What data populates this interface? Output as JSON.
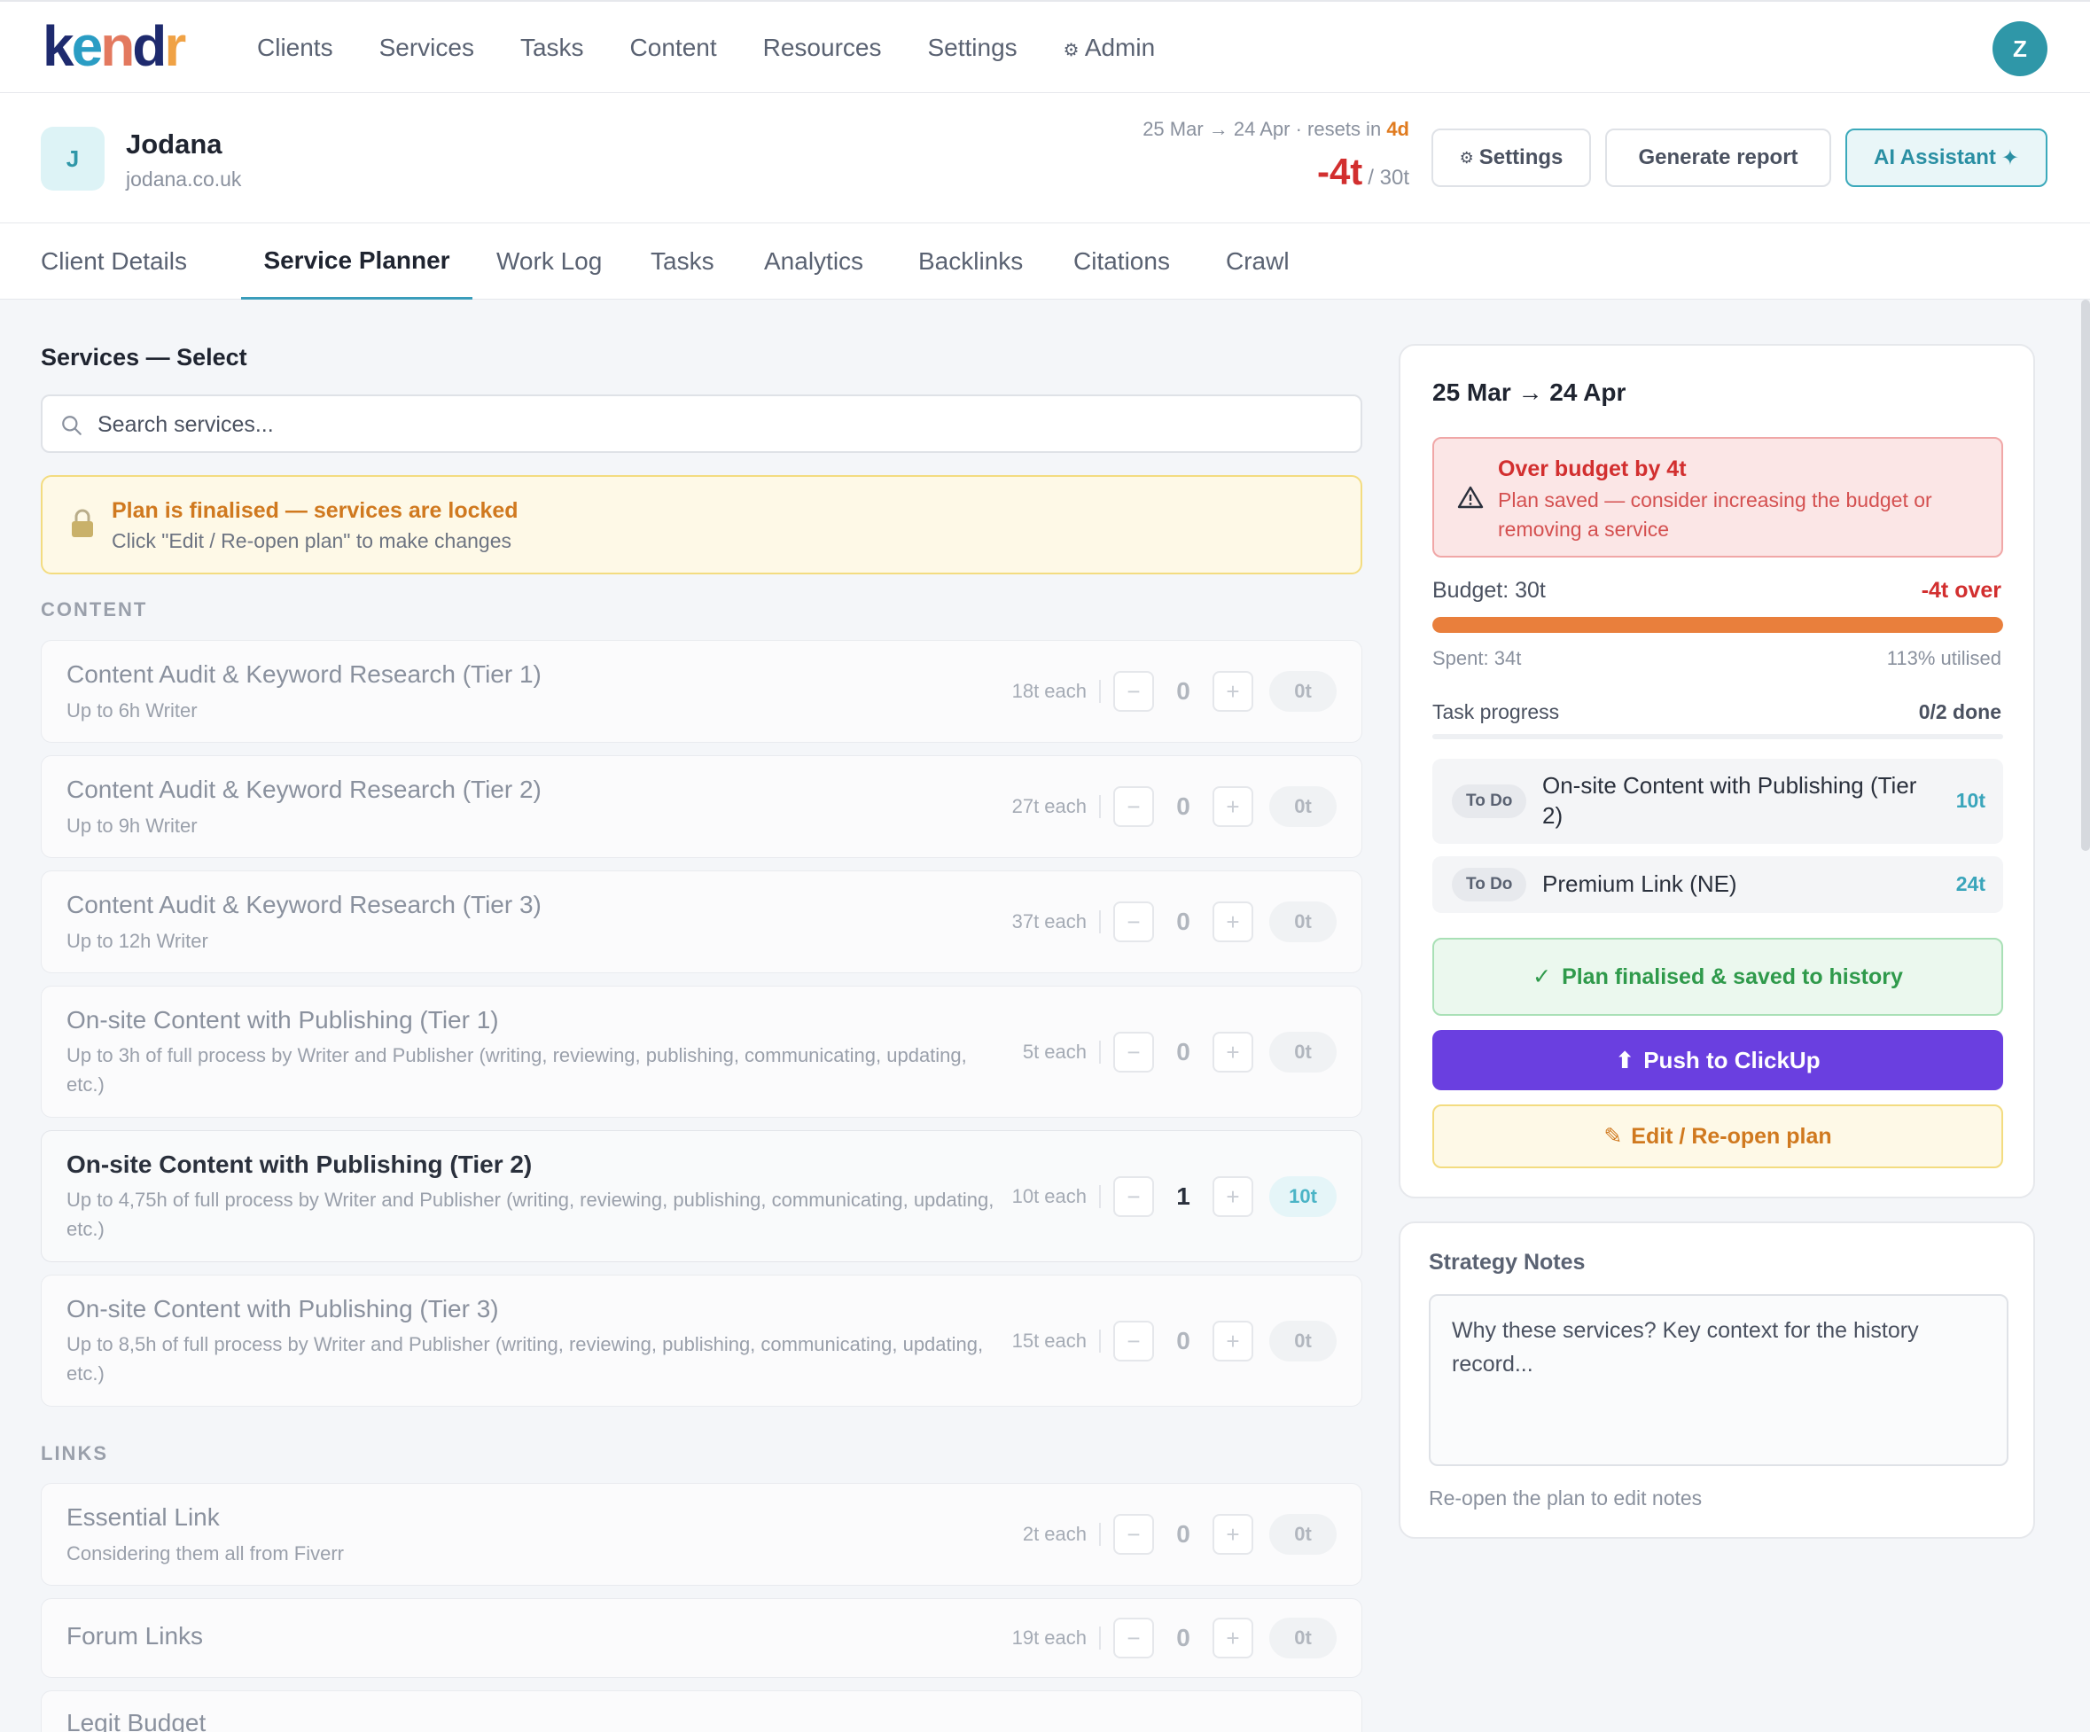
{
  "nav": {
    "logo": "kendr",
    "items": [
      "Clients",
      "Services",
      "Tasks",
      "Content",
      "Resources",
      "Settings"
    ],
    "admin_label": "Admin",
    "user_initial": "Z"
  },
  "client": {
    "initial": "J",
    "name": "Jodana",
    "domain": "jodana.co.uk",
    "period_text": "25 Mar → 24 Apr · resets in",
    "resets_in": "4d",
    "balance": "-4t",
    "budget_suffix": "/ 30t",
    "buttons": {
      "settings": "Settings",
      "report": "Generate report",
      "ai": "AI Assistant"
    }
  },
  "tabs": [
    "Client Details",
    "Service Planner",
    "Work Log",
    "Tasks",
    "Analytics",
    "Backlinks",
    "Citations",
    "Crawl"
  ],
  "services": {
    "title": "Services — Select",
    "search_placeholder": "Search services...",
    "locked_title": "Plan is finalised — services are locked",
    "locked_sub": "Click \"Edit / Re-open plan\" to make changes",
    "groups": [
      {
        "label": "CONTENT",
        "items": [
          {
            "name": "Content Audit & Keyword Research (Tier 1)",
            "desc": "Up to 6h Writer",
            "each": "18t each",
            "qty": "0",
            "total": "0t"
          },
          {
            "name": "Content Audit & Keyword Research (Tier 2)",
            "desc": "Up to 9h Writer",
            "each": "27t each",
            "qty": "0",
            "total": "0t"
          },
          {
            "name": "Content Audit & Keyword Research (Tier 3)",
            "desc": "Up to 12h Writer",
            "each": "37t each",
            "qty": "0",
            "total": "0t"
          },
          {
            "name": "On-site Content with Publishing (Tier 1)",
            "desc": "Up to 3h of full process by Writer and Publisher (writing, reviewing, publishing, communicating, updating, etc.)",
            "each": "5t each",
            "qty": "0",
            "total": "0t"
          },
          {
            "name": "On-site Content with Publishing (Tier 2)",
            "desc": "Up to 4,75h of full process by Writer and Publisher (writing, reviewing, publishing, communicating, updating, etc.)",
            "each": "10t each",
            "qty": "1",
            "total": "10t"
          },
          {
            "name": "On-site Content with Publishing (Tier 3)",
            "desc": "Up to 8,5h of full process by Writer and Publisher (writing, reviewing, publishing, communicating, updating, etc.)",
            "each": "15t each",
            "qty": "0",
            "total": "0t"
          }
        ]
      },
      {
        "label": "LINKS",
        "items": [
          {
            "name": "Essential Link",
            "desc": "Considering them all from Fiverr",
            "each": "2t each",
            "qty": "0",
            "total": "0t"
          },
          {
            "name": "Forum Links",
            "desc": "",
            "each": "19t each",
            "qty": "0",
            "total": "0t"
          },
          {
            "name": "Legit Budget",
            "desc": "",
            "each": "",
            "qty": "",
            "total": ""
          }
        ]
      }
    ]
  },
  "plan": {
    "period": "25 Mar → 24 Apr",
    "over_title": "Over budget by 4t",
    "over_desc": "Plan saved — consider increasing the budget or removing a service",
    "budget_label": "Budget: 30t",
    "over_amount": "-4t over",
    "utilised_fraction": 1.13,
    "spent": "Spent: 34t",
    "utilised": "113% utilised",
    "task_progress_label": "Task progress",
    "task_progress_value": "0/2 done",
    "tasks": [
      {
        "status": "To Do",
        "name": "On-site Content with Publishing (Tier 2)",
        "tokens": "10t"
      },
      {
        "status": "To Do",
        "name": "Premium Link (NE)",
        "tokens": "24t"
      }
    ],
    "finalised": "Plan finalised & saved to history",
    "push": "Push to ClickUp",
    "reopen": "Edit / Re-open plan"
  },
  "notes": {
    "title": "Strategy Notes",
    "placeholder": "Why these services? Key context for the history record...",
    "hint": "Re-open the plan to edit notes"
  },
  "colors": {
    "accent": "#3a9dbb",
    "danger": "#d22f2f",
    "progress": "#e97f3c",
    "primary_button": "#6a3fe0",
    "success": "#2f9a4b",
    "warning": "#d0791f"
  }
}
